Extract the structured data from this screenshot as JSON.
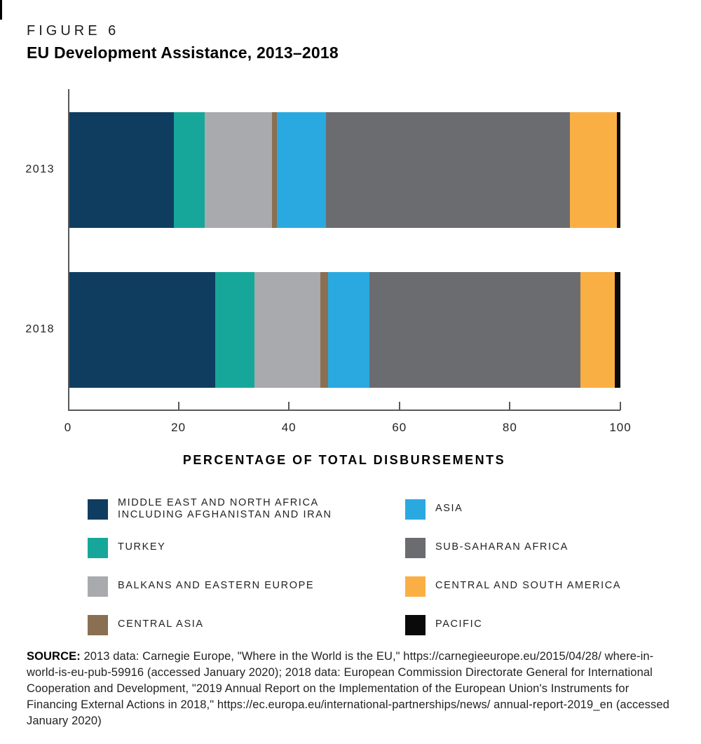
{
  "figure_label": "FIGURE 6",
  "title": "EU Development Assistance, 2013–2018",
  "chart_data": {
    "type": "bar",
    "orientation": "horizontal-stacked",
    "categories": [
      "2013",
      "2018"
    ],
    "series": [
      {
        "name": "MIDDLE EAST AND NORTH AFRICA INCLUDING AFGHANISTAN AND IRAN",
        "color": "#0E3D60",
        "values": [
          19.0,
          26.4
        ]
      },
      {
        "name": "TURKEY",
        "color": "#16A79A",
        "values": [
          5.6,
          7.2
        ]
      },
      {
        "name": "BALKANS AND EASTERN EUROPE",
        "color": "#A8AAAD",
        "values": [
          12.2,
          12.0
        ]
      },
      {
        "name": "CENTRAL ASIA",
        "color": "#8A6F52",
        "values": [
          0.9,
          1.3
        ]
      },
      {
        "name": "ASIA",
        "color": "#2AA9E0",
        "values": [
          8.9,
          7.5
        ]
      },
      {
        "name": "SUB-SAHARAN AFRICA",
        "color": "#6B6C70",
        "values": [
          44.2,
          38.4
        ]
      },
      {
        "name": "CENTRAL AND SOUTH AMERICA",
        "color": "#FAAF45",
        "values": [
          8.6,
          6.2
        ]
      },
      {
        "name": "PACIFIC",
        "color": "#0A0A0A",
        "values": [
          0.6,
          1.0
        ]
      }
    ],
    "xlabel": "PERCENTAGE OF TOTAL DISBURSEMENTS",
    "xlim": [
      0,
      100
    ],
    "xticks": [
      0,
      20,
      40,
      60,
      80,
      100
    ],
    "grid": false,
    "legend_position": "bottom"
  },
  "legend": {
    "columns": [
      {
        "items": [
          {
            "lines": [
              "MIDDLE EAST AND NORTH AFRICA",
              "INCLUDING AFGHANISTAN AND IRAN"
            ],
            "color": "#0E3D60"
          },
          {
            "lines": [
              "TURKEY"
            ],
            "color": "#16A79A"
          },
          {
            "lines": [
              "BALKANS AND EASTERN EUROPE"
            ],
            "color": "#A8AAAD"
          },
          {
            "lines": [
              "CENTRAL ASIA"
            ],
            "color": "#8A6F52"
          }
        ]
      },
      {
        "items": [
          {
            "lines": [
              "ASIA"
            ],
            "color": "#2AA9E0"
          },
          {
            "lines": [
              "SUB-SAHARAN AFRICA"
            ],
            "color": "#6B6C70"
          },
          {
            "lines": [
              "CENTRAL AND SOUTH AMERICA"
            ],
            "color": "#FAAF45"
          },
          {
            "lines": [
              "PACIFIC"
            ],
            "color": "#0A0A0A"
          }
        ]
      }
    ]
  },
  "source": {
    "label": "SOURCE:",
    "text": " 2013 data: Carnegie Europe, \"Where in the World is the EU,\" https://carnegieeurope.eu/2015/04/28/ where-in-world-is-eu-pub-59916 (accessed January 2020); 2018 data: European Commission Directorate General for International Cooperation and Development, \"2019 Annual Report on the Implementation of the European Union's Instruments for Financing External Actions in 2018,\" https://ec.europa.eu/international-partnerships/news/ annual-report-2019_en (accessed January 2020)"
  }
}
